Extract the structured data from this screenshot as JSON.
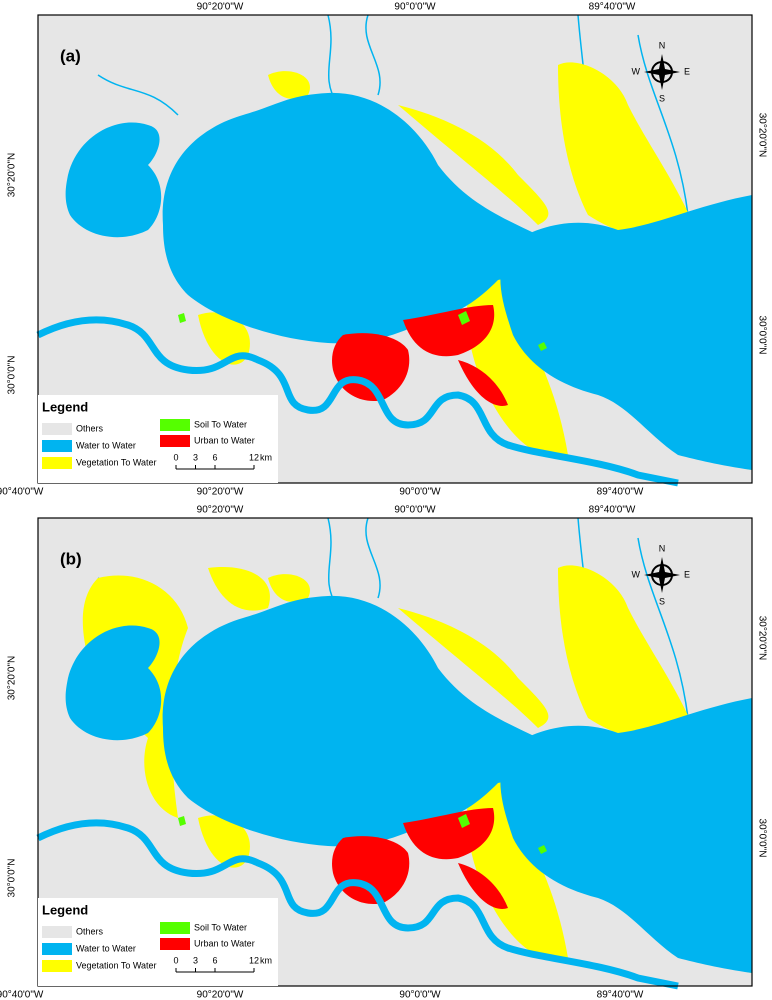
{
  "maps": [
    {
      "label": "(a)"
    },
    {
      "label": "(b)"
    }
  ],
  "axes": {
    "top": [
      "90°20'0\"W",
      "90°0'0\"W",
      "89°40'0\"W"
    ],
    "bottom": [
      "90°40'0\"W",
      "90°20'0\"W",
      "90°0'0\"W",
      "89°40'0\"W"
    ],
    "left": [
      "30°20'0\"N",
      "30°0'0\"N"
    ],
    "right": [
      "30°20'0\"N",
      "30°0'0\"N"
    ]
  },
  "legend": {
    "title": "Legend",
    "items": [
      {
        "name": "Others",
        "color": "#e6e6e6"
      },
      {
        "name": "Water to Water",
        "color": "#00b4f0"
      },
      {
        "name": "Vegetation To Water",
        "color": "#ffff00"
      },
      {
        "name": "Soil To Water",
        "color": "#55ff00"
      },
      {
        "name": "Urban to Water",
        "color": "#ff0000"
      }
    ]
  },
  "scale_bar": {
    "ticks": [
      0,
      3,
      6,
      12
    ],
    "unit": "km"
  },
  "compass": {
    "north": "N",
    "east": "E",
    "south": "S",
    "west": "W"
  }
}
